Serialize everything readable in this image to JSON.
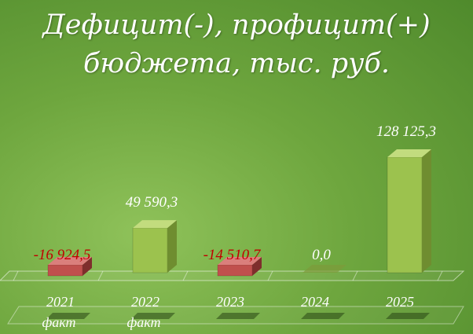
{
  "title_line1": "Дефицит(-), профицит(+)",
  "title_line2": "бюджета, тыс. руб.",
  "chart_data": {
    "type": "bar",
    "title": "Дефицит(-), профицит(+) бюджета, тыс. руб.",
    "categories": [
      "2021 факт",
      "2022 факт",
      "2023",
      "2024",
      "2025"
    ],
    "category_lines": [
      [
        "2021",
        "факт"
      ],
      [
        "2022",
        "факт"
      ],
      [
        "2023"
      ],
      [
        "2024"
      ],
      [
        "2025"
      ]
    ],
    "values": [
      -16924.5,
      49590.3,
      -14510.7,
      0.0,
      128125.3
    ],
    "value_labels": [
      "-16 924,5",
      "49 590,3",
      "-14 510,7",
      "0,0",
      "128 125,3"
    ],
    "grid": false,
    "legend": "none",
    "colors": {
      "positive_front": "#9cc24e",
      "positive_side": "#6f8d30",
      "positive_top": "#c2dc7e",
      "negative_front": "#c0504d",
      "negative_side": "#7e2e2c",
      "negative_top": "#da7f7c",
      "label_positive": "#ffffff",
      "label_negative": "#c00000",
      "axis_label": "#ffffff"
    }
  }
}
